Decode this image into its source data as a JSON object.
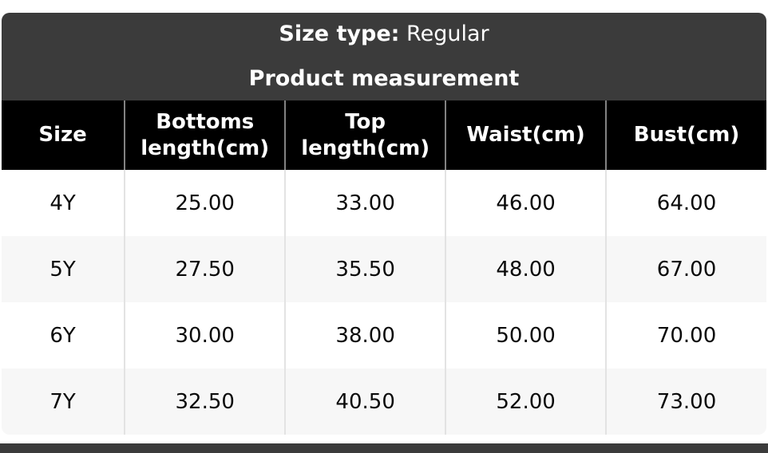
{
  "header": {
    "size_type_label": "Size type:",
    "size_type_value": "Regular",
    "subtitle": "Product measurement"
  },
  "table": {
    "columns": [
      "Size",
      "Bottoms length(cm)",
      "Top length(cm)",
      "Waist(cm)",
      "Bust(cm)"
    ],
    "rows": [
      [
        "4Y",
        "25.00",
        "33.00",
        "46.00",
        "64.00"
      ],
      [
        "5Y",
        "27.50",
        "35.50",
        "48.00",
        "67.00"
      ],
      [
        "6Y",
        "30.00",
        "38.00",
        "50.00",
        "70.00"
      ],
      [
        "7Y",
        "32.50",
        "40.50",
        "52.00",
        "73.00"
      ]
    ]
  },
  "colors": {
    "band_bg": "#3b3b3b",
    "header_bg": "#000000",
    "row_alt_bg": "#f7f7f7",
    "header_border": "#828282",
    "body_border": "#e3e3e3"
  }
}
